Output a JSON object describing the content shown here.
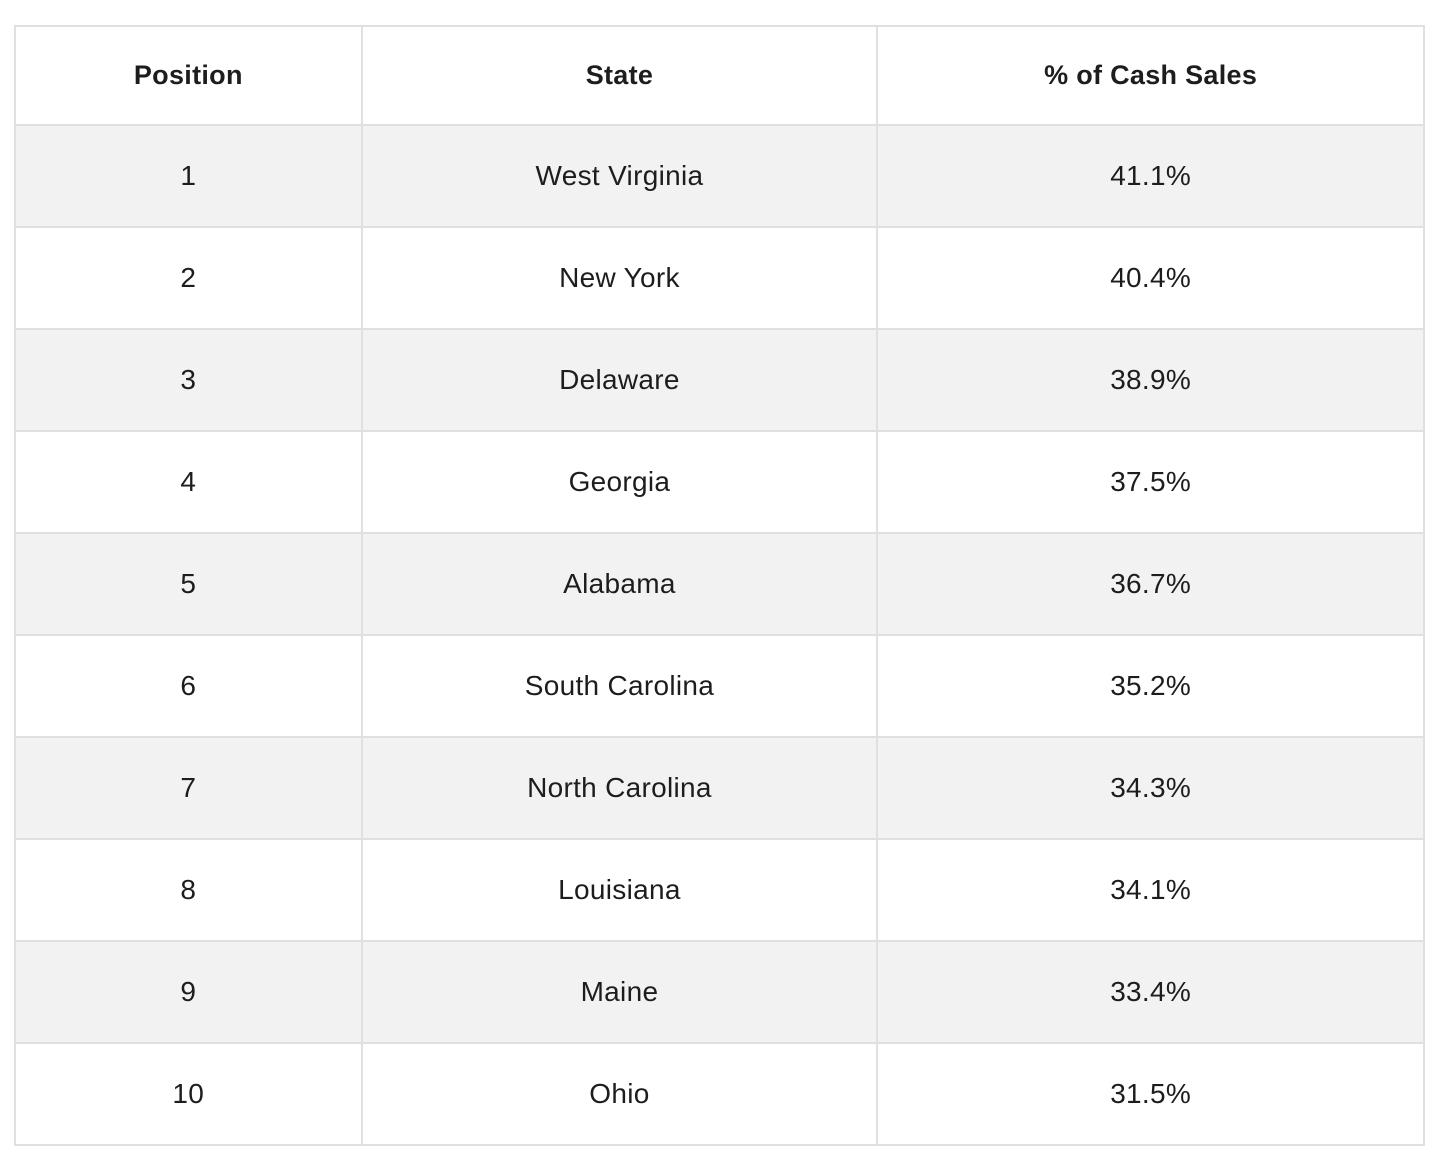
{
  "table": {
    "columns": {
      "position": "Position",
      "state": "State",
      "pct": "% of Cash Sales"
    },
    "rows": [
      {
        "position": "1",
        "state": "West Virginia",
        "pct": "41.1%"
      },
      {
        "position": "2",
        "state": "New York",
        "pct": "40.4%"
      },
      {
        "position": "3",
        "state": "Delaware",
        "pct": "38.9%"
      },
      {
        "position": "4",
        "state": "Georgia",
        "pct": "37.5%"
      },
      {
        "position": "5",
        "state": "Alabama",
        "pct": "36.7%"
      },
      {
        "position": "6",
        "state": "South Carolina",
        "pct": "35.2%"
      },
      {
        "position": "7",
        "state": "North Carolina",
        "pct": "34.3%"
      },
      {
        "position": "8",
        "state": "Louisiana",
        "pct": "34.1%"
      },
      {
        "position": "9",
        "state": "Maine",
        "pct": "33.4%"
      },
      {
        "position": "10",
        "state": "Ohio",
        "pct": "31.5%"
      }
    ],
    "style": {
      "stripe_color": "#f2f2f2",
      "border_color": "#e0e0e0",
      "text_color": "#1d1d1d"
    }
  },
  "chart_data": {
    "type": "table",
    "title": "",
    "columns": [
      "Position",
      "State",
      "% of Cash Sales"
    ],
    "rows": [
      [
        1,
        "West Virginia",
        41.1
      ],
      [
        2,
        "New York",
        40.4
      ],
      [
        3,
        "Delaware",
        38.9
      ],
      [
        4,
        "Georgia",
        37.5
      ],
      [
        5,
        "Alabama",
        36.7
      ],
      [
        6,
        "South Carolina",
        35.2
      ],
      [
        7,
        "North Carolina",
        34.3
      ],
      [
        8,
        "Louisiana",
        34.1
      ],
      [
        9,
        "Maine",
        33.4
      ],
      [
        10,
        "Ohio",
        31.5
      ]
    ],
    "value_unit": "%",
    "layout": "striped rows, centered text, light gray grid borders"
  }
}
